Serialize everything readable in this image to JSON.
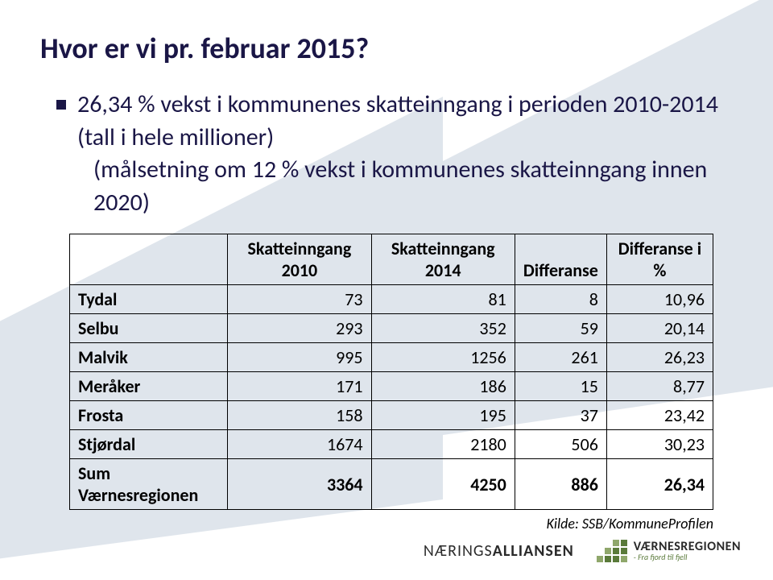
{
  "title": "Hvor er vi pr. februar 2015?",
  "bullet": {
    "line1": "26,34 % vekst i kommunenes skatteinngang i perioden 2010-2014 (tall i hele millioner)",
    "line2": "(målsetning om 12 % vekst i kommunenes skatteinngang innen 2020)"
  },
  "table": {
    "headers": {
      "col1": "Skatteinngang 2010",
      "col2": "Skatteinngang 2014",
      "col3": "Differanse",
      "col4": "Differanse i  %"
    },
    "rows": [
      {
        "name": "Tydal",
        "v2010": "73",
        "v2014": "81",
        "diff": "8",
        "pct": "10,96"
      },
      {
        "name": "Selbu",
        "v2010": "293",
        "v2014": "352",
        "diff": "59",
        "pct": "20,14"
      },
      {
        "name": "Malvik",
        "v2010": "995",
        "v2014": "1256",
        "diff": "261",
        "pct": "26,23"
      },
      {
        "name": "Meråker",
        "v2010": "171",
        "v2014": "186",
        "diff": "15",
        "pct": "8,77"
      },
      {
        "name": "Frosta",
        "v2010": "158",
        "v2014": "195",
        "diff": "37",
        "pct": "23,42"
      },
      {
        "name": "Stjørdal",
        "v2010": "1674",
        "v2014": "2180",
        "diff": "506",
        "pct": "30,23"
      }
    ],
    "total": {
      "name": "Sum Værnesregionen",
      "v2010": "3364",
      "v2014": "4250",
      "diff": "886",
      "pct": "26,34"
    }
  },
  "source": "Kilde: SSB/KommuneProfilen",
  "footer": {
    "logo1_thin": "NÆRINGS",
    "logo1_bold": "ALLIANSEN",
    "logo2_main": "VÆRNESREGIONEN",
    "logo2_tag": "- Fra fjord til fjell"
  },
  "colors": {
    "heading": "#1a1646",
    "bg_arrow": "#b7c5d6",
    "table_border": "#000000"
  }
}
